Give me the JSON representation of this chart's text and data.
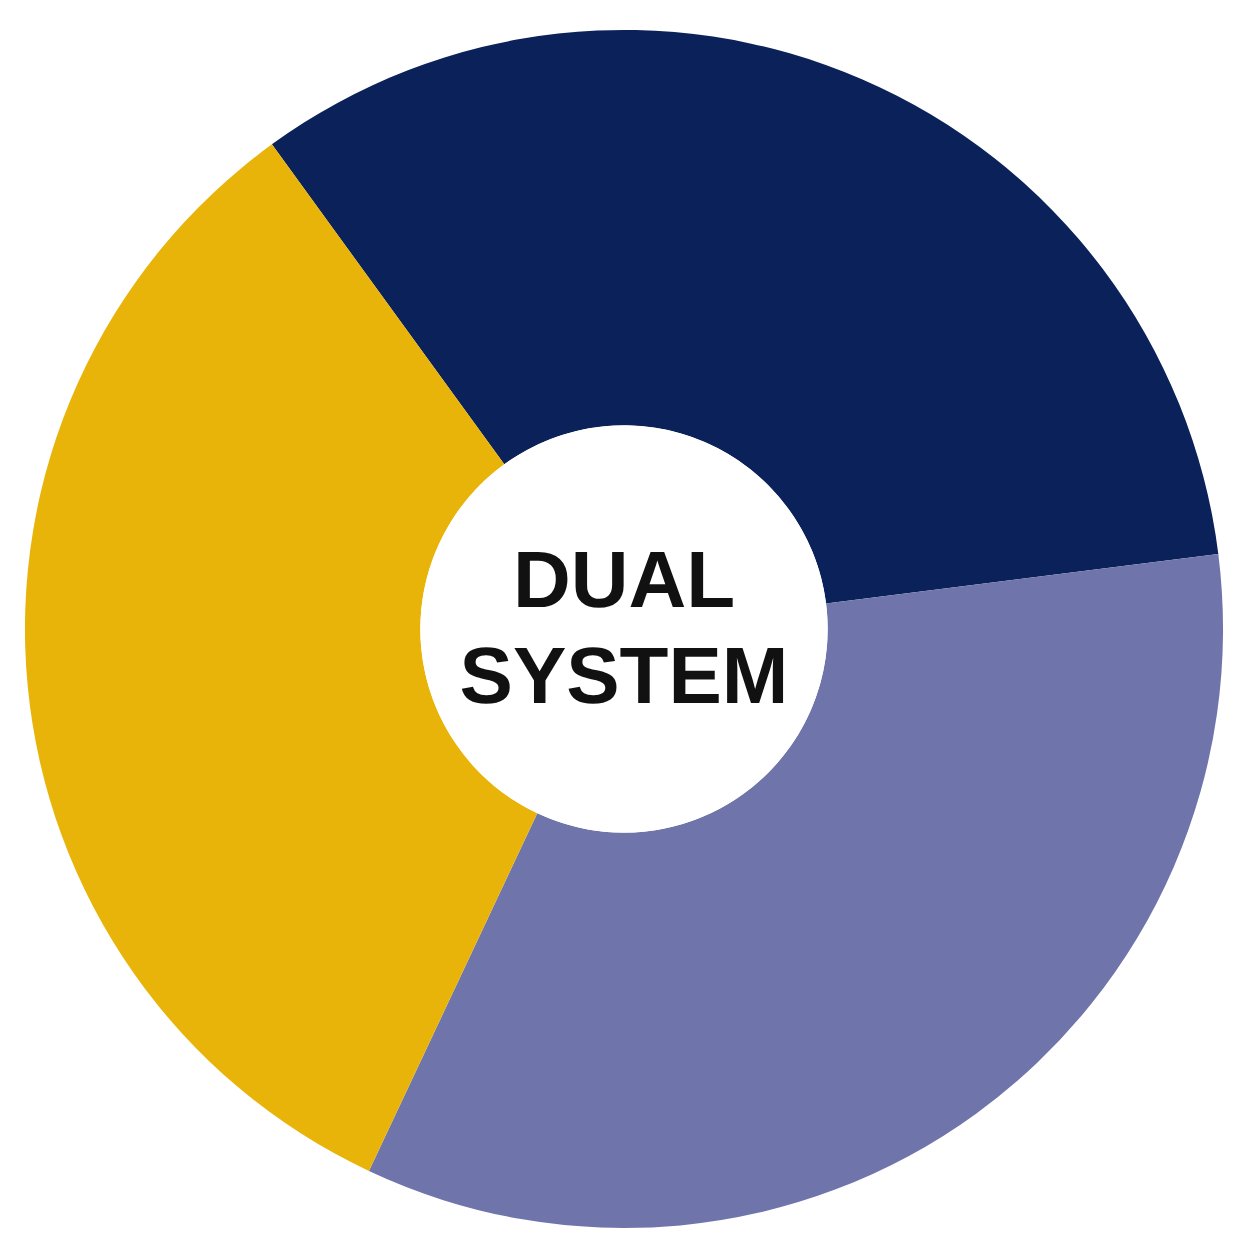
{
  "chart_data": {
    "type": "donut",
    "title": "DUAL SYSTEM",
    "categories": [
      null,
      null,
      null
    ],
    "values": [
      33,
      34,
      33
    ],
    "colors": [
      "#0b2159",
      "#6f75ab",
      "#e9b409"
    ]
  }
}
